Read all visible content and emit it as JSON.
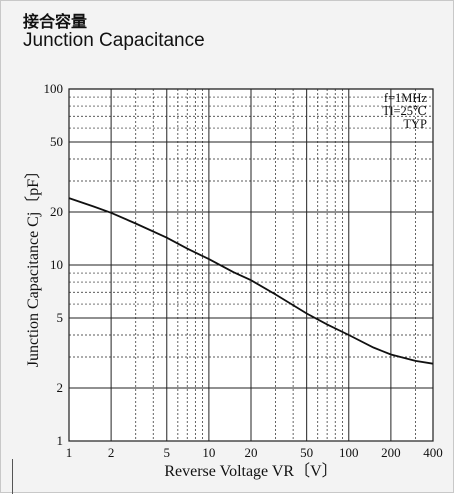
{
  "header": {
    "title_cn": "接合容量",
    "title_en": "Junction Capacitance"
  },
  "chart_data": {
    "type": "line",
    "title": "Junction Capacitance",
    "xlabel": "Reverse Voltage VR〔V〕",
    "ylabel": "Junction Capacitance Cj〔pF〕",
    "xscale": "log",
    "yscale": "log",
    "xlim": [
      1,
      400
    ],
    "ylim": [
      1,
      100
    ],
    "grid": true,
    "x_ticks": [
      1,
      2,
      5,
      10,
      20,
      50,
      100,
      200,
      400
    ],
    "y_ticks": [
      1,
      2,
      5,
      10,
      20,
      50,
      100
    ],
    "x_tick_labels": [
      "1",
      "2",
      "5",
      "10",
      "20",
      "50",
      "100",
      "200",
      "400"
    ],
    "y_tick_labels": [
      "1",
      "2",
      "5",
      "10",
      "20",
      "50",
      "100"
    ],
    "annotations": [
      "f=1MHz",
      "Tl=25℃",
      "TYP"
    ],
    "series": [
      {
        "x": [
          1,
          1.5,
          2,
          3,
          5,
          7,
          10,
          15,
          20,
          30,
          50,
          70,
          100,
          150,
          200,
          300,
          400
        ],
        "y": [
          24,
          21.5,
          19.8,
          17.2,
          14.3,
          12.4,
          10.8,
          9.1,
          8.2,
          6.8,
          5.3,
          4.6,
          4.0,
          3.4,
          3.1,
          2.85,
          2.75
        ]
      }
    ]
  },
  "colors": {
    "line": "#111111",
    "grid": "#222222",
    "panel": "#f3f3f3",
    "plot": "#ffffff"
  }
}
